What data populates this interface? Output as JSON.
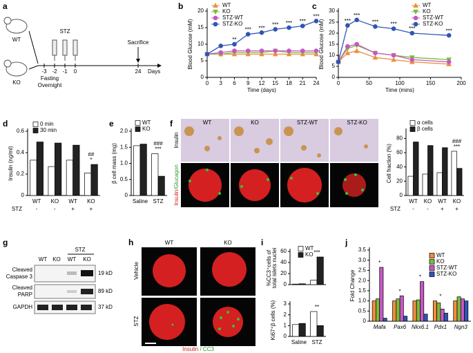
{
  "panel_letters": [
    "a",
    "b",
    "c",
    "d",
    "e",
    "f",
    "g",
    "h",
    "i",
    "j"
  ],
  "schematic": {
    "groups": [
      "WT",
      "KO"
    ],
    "treatment": "STZ",
    "days": [
      "-3",
      "-2",
      "-1",
      "0",
      "24"
    ],
    "unit": "Days",
    "fasting": [
      "Fasting",
      "Overnight"
    ],
    "endpoint": "Sacrifice"
  },
  "islet_images": {
    "columns": [
      "WT",
      "KO",
      "STZ-WT",
      "STZ-KO"
    ],
    "top_stain": "Insulin",
    "bottom_stain": [
      "Insulin",
      "/Glucagon"
    ]
  },
  "blot": {
    "group": "STZ",
    "columns": [
      "WT",
      "KO",
      "WT",
      "KO"
    ],
    "rows": [
      {
        "label": [
          "Cleaved",
          "Caspase 3"
        ],
        "size": "19 kD"
      },
      {
        "label": [
          "Cleaved",
          "PARP"
        ],
        "size": "89 kD"
      },
      {
        "label": [
          "GAPDH"
        ],
        "size": "37 kD"
      }
    ]
  },
  "apoptosis_images": {
    "columns": [
      "WT",
      "KO"
    ],
    "rows": [
      "Vehicle",
      "STZ"
    ],
    "stain": [
      "Insulin",
      " / CC3"
    ]
  },
  "chart_data": [
    {
      "type": "line",
      "x": [
        0,
        3,
        6,
        9,
        12,
        15,
        18,
        21,
        24
      ],
      "xlim": [
        0,
        24
      ],
      "xticks": [
        0,
        3,
        6,
        9,
        12,
        15,
        18,
        21,
        24
      ],
      "ylim": [
        0,
        20
      ],
      "yticks": [
        0,
        5,
        10,
        15,
        20
      ],
      "xlabel": "Time (days)",
      "ylabel": "Blood Glucose (mM)",
      "series": [
        {
          "name": "WT",
          "color": "#f08c3c",
          "marker": "^",
          "values": [
            7,
            7,
            7,
            7,
            7,
            7,
            7,
            7,
            7
          ]
        },
        {
          "name": "KO",
          "color": "#7cba3a",
          "marker": "v",
          "values": [
            7,
            7,
            7.5,
            7.5,
            7.5,
            8,
            7.5,
            7.5,
            7.5
          ]
        },
        {
          "name": "STZ-WT",
          "color": "#c458c4",
          "marker": "o",
          "values": [
            7,
            7.5,
            8,
            8,
            8,
            8,
            8,
            8,
            8
          ]
        },
        {
          "name": "STZ-KO",
          "color": "#2f55b5",
          "marker": "o",
          "values": [
            7,
            9.5,
            10,
            13,
            13.5,
            14.5,
            15,
            15.5,
            17
          ]
        }
      ],
      "annotations": [
        null,
        null,
        [
          "**"
        ],
        [
          "***"
        ],
        [
          "***"
        ],
        [
          "***"
        ],
        [
          "***"
        ],
        [
          "***"
        ],
        [
          "***"
        ]
      ]
    },
    {
      "type": "line",
      "x": [
        0,
        15,
        30,
        60,
        90,
        120,
        180
      ],
      "xlim": [
        0,
        200
      ],
      "xticks": [
        0,
        50,
        100,
        150,
        200
      ],
      "ylim": [
        0,
        30
      ],
      "yticks": [
        0,
        5,
        10,
        15,
        20,
        25,
        30
      ],
      "xlabel": "Time (mins)",
      "ylabel": "Blood Glucose (mM)",
      "series": [
        {
          "name": "WT",
          "color": "#f08c3c",
          "marker": "^",
          "values": [
            7,
            11,
            12,
            9,
            8,
            7,
            6
          ]
        },
        {
          "name": "KO",
          "color": "#7cba3a",
          "marker": "v",
          "values": [
            7,
            13,
            14.5,
            11,
            10,
            9,
            8
          ]
        },
        {
          "name": "STZ-WT",
          "color": "#c458c4",
          "marker": "o",
          "values": [
            7,
            14,
            15,
            11,
            10,
            8,
            7
          ]
        },
        {
          "name": "STZ-KO",
          "color": "#2f55b5",
          "marker": "o",
          "values": [
            7,
            23.5,
            26,
            23,
            22,
            20,
            19
          ]
        }
      ],
      "annotations": [
        [
          "*"
        ],
        [
          "***"
        ],
        [
          "***"
        ],
        [
          "***"
        ],
        [
          "***"
        ],
        [
          "***"
        ],
        [
          "***"
        ]
      ]
    },
    {
      "type": "bar",
      "categories": [
        "WT",
        "KO",
        "WT",
        "KO"
      ],
      "row_label": "STZ",
      "row_values": [
        "-",
        "-",
        "+",
        "+"
      ],
      "ylim": [
        0,
        0.6
      ],
      "yticks": [
        0,
        0.2,
        0.4,
        0.6
      ],
      "ylabel": "Insulin (ng/ml)",
      "series": [
        {
          "name": "0  min",
          "color": "#ffffff",
          "values": [
            0.33,
            0.27,
            0.33,
            0.21
          ]
        },
        {
          "name": "30 min",
          "color": "#222222",
          "values": [
            0.5,
            0.49,
            0.47,
            0.29
          ]
        }
      ],
      "annotations": [
        null,
        null,
        null,
        [
          "*",
          "##"
        ]
      ]
    },
    {
      "type": "bar",
      "categories": [
        "Saline",
        "STZ"
      ],
      "ylim": [
        0,
        2
      ],
      "yticks": [
        0,
        0.5,
        {
          "value": 1,
          "label": "1.0"
        },
        1.5,
        {
          "value": 2,
          "label": "2.0"
        }
      ],
      "ylabel": "β cell mass (mg)",
      "series": [
        {
          "name": "WT",
          "color": "#ffffff",
          "values": [
            1.55,
            1.3
          ]
        },
        {
          "name": "KO",
          "color": "#222222",
          "values": [
            1.6,
            0.6
          ]
        }
      ],
      "annotations": [
        null,
        [
          "***",
          "###"
        ]
      ]
    },
    {
      "type": "bar",
      "categories": [
        "WT",
        "KO",
        "WT",
        "KO"
      ],
      "row_label": "STZ",
      "row_values": [
        "-",
        "-",
        "+",
        "+"
      ],
      "ylim": [
        0,
        90
      ],
      "yticks": [
        0,
        20,
        40,
        60,
        80
      ],
      "ylabel": "Cell fraction (%)",
      "series": [
        {
          "name": "α cells",
          "color": "#ffffff",
          "values": [
            27,
            30,
            32,
            62
          ]
        },
        {
          "name": "β cells",
          "color": "#222222",
          "values": [
            75,
            70,
            67,
            38
          ]
        }
      ],
      "annotations": [
        null,
        null,
        null,
        [
          "***",
          "###"
        ]
      ]
    },
    {
      "type": "bar",
      "categories": [
        null,
        null
      ],
      "ylim": [
        0,
        60
      ],
      "yticks": [
        0,
        20,
        40,
        60
      ],
      "ylabel": [
        "%CC3⁺cells of",
        "total islets nuclei"
      ],
      "series": [
        {
          "name": "WT",
          "color": "#ffffff",
          "values": [
            1,
            8
          ]
        },
        {
          "name": "KO",
          "color": "#222222",
          "values": [
            1.5,
            50
          ]
        }
      ],
      "annotations": [
        null,
        [
          "***"
        ]
      ]
    },
    {
      "type": "bar",
      "categories": [
        "Saline",
        "STZ"
      ],
      "ylim": [
        0,
        3
      ],
      "yticks": [
        0,
        1,
        2,
        3
      ],
      "ylabel": "Ki67⁺β cells (%)",
      "legend": false,
      "series": [
        {
          "name": "WT",
          "color": "#ffffff",
          "values": [
            1.1,
            2.3
          ]
        },
        {
          "name": "KO",
          "color": "#222222",
          "values": [
            1.2,
            1
          ]
        }
      ],
      "annotations": [
        null,
        [
          "**"
        ]
      ]
    },
    {
      "type": "bar",
      "categories": [
        "Mafa",
        "Pax6",
        "Nkx6.1",
        "Pdx1",
        "Ngn3"
      ],
      "italic_categories": true,
      "ylim": [
        0,
        3.5
      ],
      "yticks": [
        0,
        0.5,
        {
          "value": 1,
          "label": "1.0"
        },
        1.5,
        {
          "value": 2,
          "label": "2.0"
        },
        2.5,
        {
          "value": 3,
          "label": "3.0"
        },
        3.5
      ],
      "ylabel": "Fold Change",
      "series": [
        {
          "name": "WT",
          "color": "#f08c3c",
          "values": [
            1,
            1,
            1,
            1,
            1
          ]
        },
        {
          "name": "KO",
          "color": "#7cba3a",
          "values": [
            1.1,
            1.1,
            1.05,
            0.9,
            1.2
          ]
        },
        {
          "name": "STZ-WT",
          "color": "#c458c4",
          "values": [
            2.65,
            1.25,
            1.95,
            0.6,
            1.1
          ]
        },
        {
          "name": "STZ-KO",
          "color": "#2f55b5",
          "values": [
            0.15,
            0.25,
            0.35,
            0.4,
            1
          ]
        }
      ],
      "annotations": [
        [
          "*"
        ],
        [
          "*"
        ],
        [
          "*"
        ],
        [
          "*"
        ],
        null
      ]
    }
  ]
}
